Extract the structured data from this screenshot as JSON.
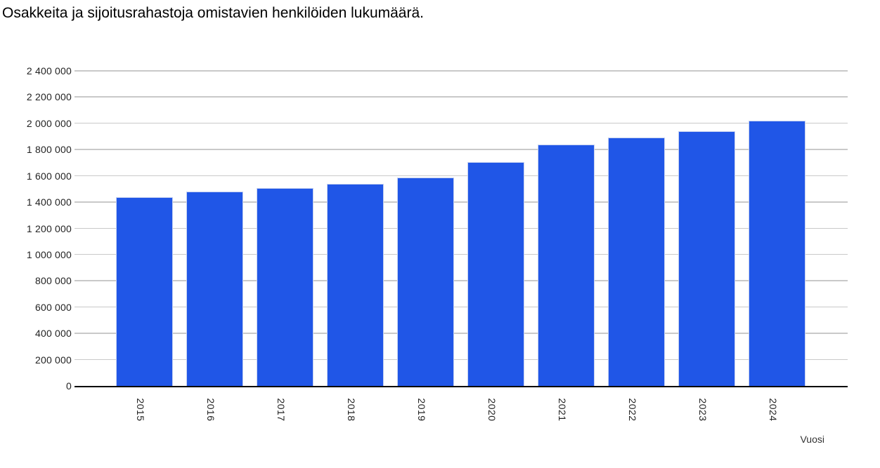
{
  "chart_data": {
    "type": "bar",
    "title": "Osakkeita ja sijoitusrahastoja omistavien henkilöiden lukumäärä.",
    "xlabel": "Vuosi",
    "ylabel": "",
    "categories": [
      "2015",
      "2016",
      "2017",
      "2018",
      "2019",
      "2020",
      "2021",
      "2022",
      "2023",
      "2024"
    ],
    "values": [
      1440000,
      1480000,
      1510000,
      1540000,
      1585000,
      1705000,
      1840000,
      1890000,
      1940000,
      2020000
    ],
    "ylim": [
      0,
      2400000
    ],
    "ytick_step": 200000,
    "ytick_labels": [
      "0",
      "200 000",
      "400 000",
      "600 000",
      "800 000",
      "1 000 000",
      "1 200 000",
      "1 400 000",
      "1 600 000",
      "1 800 000",
      "2 000 000",
      "2 200 000",
      "2 400 000"
    ],
    "grid": true,
    "legend": "none"
  },
  "colors": {
    "bar": "#2056E7",
    "bar_border": "#C5D1F0",
    "gridline": "#C9C9C9",
    "axis_line": "#000000",
    "title_text": "#000000",
    "tick_text": "#222222"
  }
}
